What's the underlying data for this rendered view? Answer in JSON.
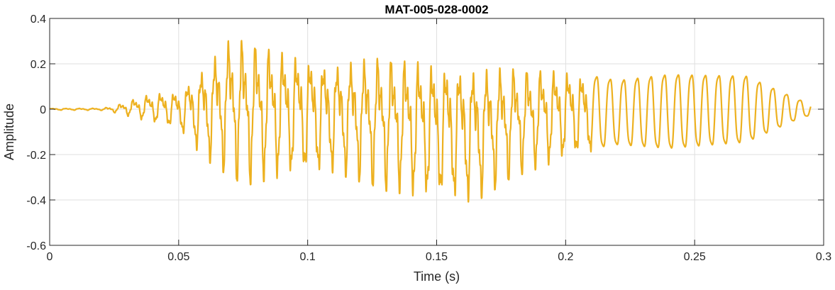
{
  "colors": {
    "background": "#ffffff",
    "axes_face": "#ffffff",
    "axis_line": "#262626",
    "grid": "#dfdfdf",
    "series": "#EDB120"
  },
  "chart_data": {
    "type": "line",
    "title": "MAT-005-028-0002",
    "xlabel": "Time (s)",
    "ylabel": "Amplitude",
    "xlim": [
      0,
      0.3
    ],
    "ylim": [
      -0.6,
      0.4
    ],
    "grid": true,
    "legend": "none",
    "xticks": [
      0,
      0.05,
      0.1,
      0.15,
      0.2,
      0.25,
      0.3
    ],
    "xtick_labels": [
      "0",
      "0.05",
      "0.1",
      "0.15",
      "0.2",
      "0.25",
      "0.3"
    ],
    "yticks": [
      -0.6,
      -0.4,
      -0.2,
      0,
      0.2,
      0.4
    ],
    "ytick_labels": [
      "-0.6",
      "-0.4",
      "-0.2",
      "0",
      "0.2",
      "0.4"
    ],
    "series": [
      {
        "name": "",
        "color": "#EDB120",
        "duration": 0.295,
        "envelope": {
          "t": [
            0,
            0.02,
            0.025,
            0.03,
            0.04,
            0.05,
            0.06,
            0.07,
            0.075,
            0.09,
            0.11,
            0.13,
            0.15,
            0.165,
            0.18,
            0.2,
            0.22,
            0.24,
            0.27,
            0.29,
            0.295
          ],
          "max": [
            0.004,
            0.005,
            0.015,
            0.04,
            0.08,
            0.09,
            0.22,
            0.36,
            0.36,
            0.3,
            0.24,
            0.28,
            0.25,
            0.23,
            0.22,
            0.2,
            0.15,
            0.18,
            0.17,
            0.05,
            0.03
          ],
          "min": [
            -0.004,
            -0.005,
            -0.015,
            -0.03,
            -0.06,
            -0.09,
            -0.22,
            -0.3,
            -0.34,
            -0.3,
            -0.28,
            -0.36,
            -0.4,
            -0.41,
            -0.3,
            -0.22,
            -0.18,
            -0.2,
            -0.17,
            -0.05,
            -0.03
          ]
        }
      }
    ]
  }
}
